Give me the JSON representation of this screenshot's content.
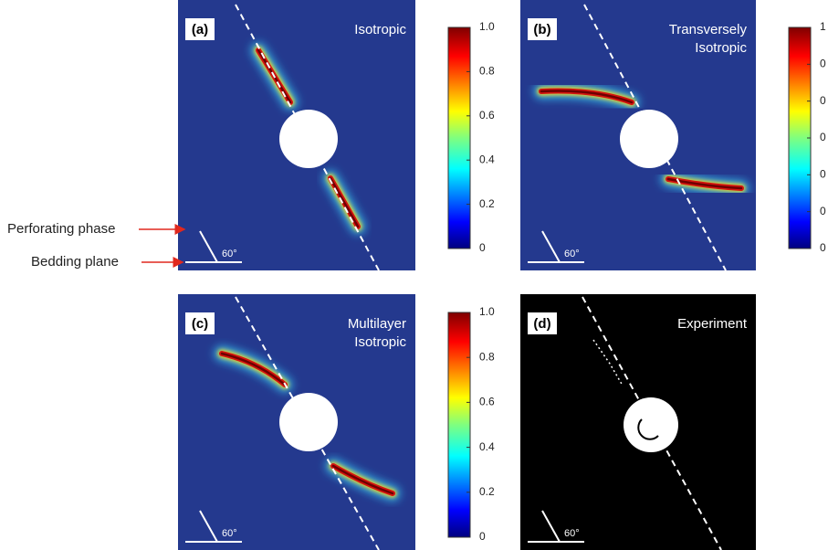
{
  "panels": [
    {
      "label": "(a)",
      "title": [
        "Isotropic"
      ],
      "angle": "60°",
      "colorbar": [
        "1.0",
        "0.8",
        "0.6",
        "0.4",
        "0.2",
        "0"
      ]
    },
    {
      "label": "(b)",
      "title": [
        "Transversely",
        "Isotropic"
      ],
      "angle": "60°",
      "colorbar": [
        "1",
        "0",
        "0",
        "0",
        "0",
        "0",
        "0"
      ]
    },
    {
      "label": "(c)",
      "title": [
        "Multilayer",
        "Isotropic"
      ],
      "angle": "60°",
      "colorbar": [
        "1.0",
        "0.8",
        "0.6",
        "0.4",
        "0.2",
        "0"
      ]
    },
    {
      "label": "(d)",
      "title": [
        "Experiment"
      ],
      "angle": "60°"
    }
  ],
  "annotations": [
    "Perforating phase",
    "Bedding plane"
  ]
}
